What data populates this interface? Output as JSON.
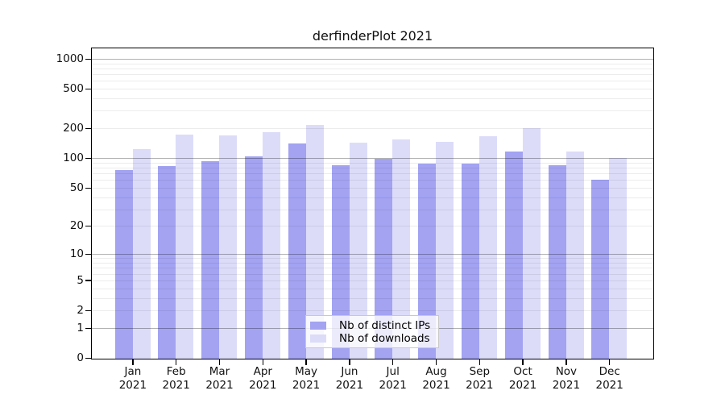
{
  "chart_data": {
    "type": "bar",
    "title": "derfinderPlot 2021",
    "categories": [
      "Jan",
      "Feb",
      "Mar",
      "Apr",
      "May",
      "Jun",
      "Jul",
      "Aug",
      "Sep",
      "Oct",
      "Nov",
      "Dec"
    ],
    "category_year": "2021",
    "series": [
      {
        "name": "Nb of distinct IPs",
        "color": "#a3a3f2",
        "values": [
          77,
          85,
          94,
          106,
          144,
          87,
          101,
          90,
          90,
          118,
          86,
          61
        ]
      },
      {
        "name": "Nb of downloads",
        "color": "#dcdcf9",
        "values": [
          125,
          176,
          173,
          186,
          220,
          145,
          158,
          150,
          168,
          204,
          118,
          103
        ]
      }
    ],
    "y_axis": {
      "scale": "log10(1+x)",
      "tick_values": [
        0,
        1,
        2,
        5,
        10,
        20,
        50,
        100,
        200,
        500,
        1000
      ],
      "range": [
        0,
        1000
      ]
    },
    "x_axis": {
      "tick_label_format": "month over year, two lines"
    },
    "grid": {
      "major_lines": [
        1,
        10,
        100,
        1000
      ],
      "minor_lines": [
        2,
        3,
        4,
        5,
        6,
        7,
        8,
        9,
        20,
        30,
        40,
        50,
        60,
        70,
        80,
        90,
        200,
        300,
        400,
        500,
        600,
        700,
        800,
        900
      ]
    },
    "legend": {
      "position": "inside-bottom-center",
      "entries": [
        "Nb of distinct IPs",
        "Nb of downloads"
      ]
    },
    "colors": {
      "frame": "#000000",
      "background": "#ffffff"
    }
  }
}
